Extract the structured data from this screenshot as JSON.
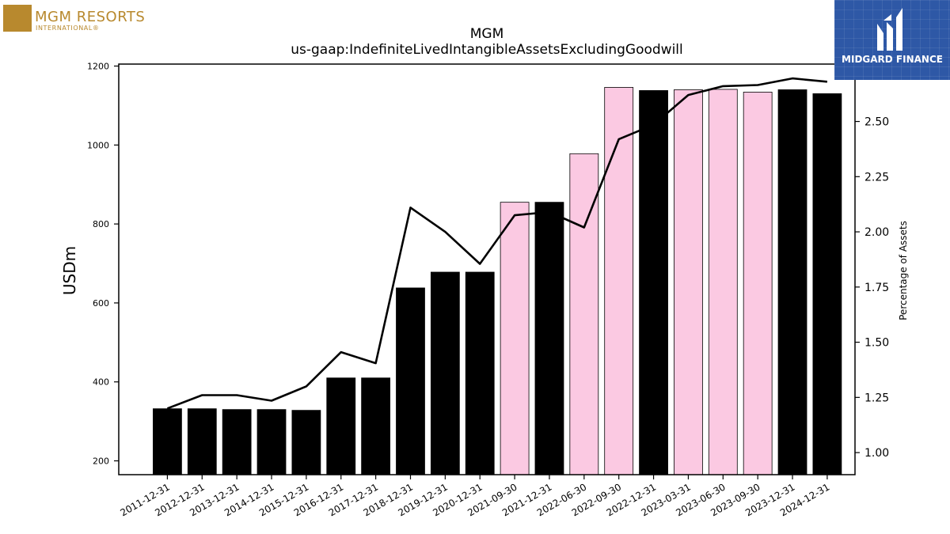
{
  "logos": {
    "left_name": "MGM RESORTS",
    "left_sub": "INTERNATIONAL®",
    "right_name": "MIDGARD FINANCE"
  },
  "chart_data": {
    "type": "bar",
    "title": "MGM",
    "subtitle": "us-gaap:IndefiniteLivedIntangibleAssetsExcludingGoodwill",
    "ylabel": "USDm",
    "y2label": "Percentage of Assets",
    "ylim": [
      165,
      1205
    ],
    "y2lim": [
      0.9,
      2.76
    ],
    "yticks": [
      200,
      400,
      600,
      800,
      1000,
      1200
    ],
    "y2ticks": [
      "1.00",
      "1.25",
      "1.50",
      "1.75",
      "2.00",
      "2.25",
      "2.50"
    ],
    "categories": [
      "2011-12-31",
      "2012-12-31",
      "2013-12-31",
      "2014-12-31",
      "2015-12-31",
      "2016-12-31",
      "2017-12-31",
      "2018-12-31",
      "2019-12-31",
      "2020-12-31",
      "2021-09-30",
      "2021-12-31",
      "2022-06-30",
      "2022-09-30",
      "2022-12-31",
      "2023-03-31",
      "2023-06-30",
      "2023-09-30",
      "2023-12-31",
      "2024-12-31"
    ],
    "series": [
      {
        "type": "bar",
        "values": [
          332,
          332,
          330,
          330,
          328,
          410,
          410,
          638,
          678,
          678,
          855,
          855,
          978,
          1146,
          1138,
          1140,
          1141,
          1134,
          1140,
          1130
        ],
        "colors": [
          "#000000",
          "#000000",
          "#000000",
          "#000000",
          "#000000",
          "#000000",
          "#000000",
          "#000000",
          "#000000",
          "#000000",
          "#fbc9e2",
          "#000000",
          "#fbc9e2",
          "#fbc9e2",
          "#000000",
          "#fbc9e2",
          "#fbc9e2",
          "#fbc9e2",
          "#000000",
          "#000000"
        ]
      },
      {
        "type": "line",
        "axis": "right",
        "color": "#000000",
        "values": [
          1.2,
          1.26,
          1.26,
          1.235,
          1.3,
          1.455,
          1.405,
          2.11,
          2.0,
          1.855,
          2.075,
          2.09,
          2.02,
          2.42,
          2.485,
          2.62,
          2.66,
          2.665,
          2.695,
          2.68
        ]
      }
    ]
  }
}
